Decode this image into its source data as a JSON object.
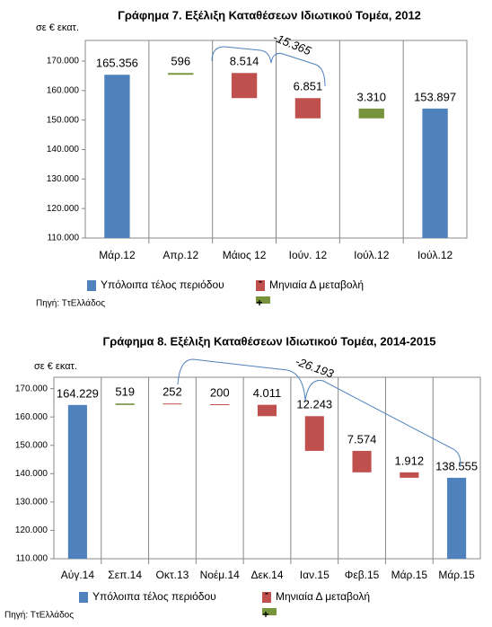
{
  "chart_data": [
    {
      "type": "waterfall",
      "title": "Γράφημα 7. Εξέλιξη Καταθέσεων Ιδιωτικού Τομέα, 2012",
      "y_label": "σε € εκατ.",
      "categories": [
        "Μάρ.12",
        "Απρ.12",
        "Μάιος 12",
        "Ιούν. 12",
        "Ιούλ.12",
        "Ιούλ.12"
      ],
      "values": [
        165356,
        596,
        8514,
        6851,
        3310,
        153897
      ],
      "value_labels": [
        "165.356",
        "596",
        "8.514",
        "6.851",
        "3.310",
        "153.897"
      ],
      "measures": [
        "total",
        "increase",
        "decrease",
        "decrease",
        "increase",
        "total"
      ],
      "colors": {
        "total": "#4f81bd",
        "increase": "#77933c",
        "decrease": "#c0504d"
      },
      "ylim": [
        110000,
        177000
      ],
      "yticks": [
        {
          "value": 110000,
          "label": "110.000"
        },
        {
          "value": 120000,
          "label": "120.000"
        },
        {
          "value": 130000,
          "label": "130.000"
        },
        {
          "value": 140000,
          "label": "140.000"
        },
        {
          "value": 150000,
          "label": "150.000"
        },
        {
          "value": 160000,
          "label": "160.000"
        },
        {
          "value": 170000,
          "label": "170.000"
        }
      ],
      "annotation": "-15.365",
      "legend": [
        {
          "name": "Υπόλοιπα τέλος περιόδου",
          "color": "#4f81bd"
        },
        {
          "name": "Μηνιαία Δ μεταβολή",
          "color": "#c0504d",
          "symbol": "-"
        },
        {
          "color": "#77933c",
          "symbol": "+"
        }
      ],
      "source": "Πηγή: ΤτΕλλάδος"
    },
    {
      "type": "waterfall",
      "title": "Γράφημα 8. Εξέλιξη Καταθέσεων Ιδιωτικού Τομέα, 2014-2015",
      "y_label": "σε € εκατ.",
      "categories": [
        "Αύγ.14",
        "Σεπ.14",
        "Οκτ.13",
        "Νοέμ.14",
        "Δεκ.14",
        "Ιαν.15",
        "Φεβ.15",
        "Μάρ.15",
        "Μάρ.15"
      ],
      "values": [
        164229,
        519,
        252,
        200,
        4011,
        12243,
        7574,
        1912,
        138555
      ],
      "value_labels": [
        "164.229",
        "519",
        "252",
        "200",
        "4.011",
        "12.243",
        "7.574",
        "1.912",
        "138.555"
      ],
      "measures": [
        "total",
        "increase",
        "decrease",
        "decrease",
        "decrease",
        "decrease",
        "decrease",
        "decrease",
        "total"
      ],
      "colors": {
        "total": "#4f81bd",
        "increase": "#77933c",
        "decrease": "#c0504d"
      },
      "ylim": [
        110000,
        174000
      ],
      "yticks": [
        {
          "value": 110000,
          "label": "110.000"
        },
        {
          "value": 120000,
          "label": "120.000"
        },
        {
          "value": 130000,
          "label": "130.000"
        },
        {
          "value": 140000,
          "label": "140.000"
        },
        {
          "value": 150000,
          "label": "150.000"
        },
        {
          "value": 160000,
          "label": "160.000"
        },
        {
          "value": 170000,
          "label": "170.000"
        }
      ],
      "annotation": "-26.193",
      "legend": [
        {
          "name": "Υπόλοιπα τέλος περιόδου",
          "color": "#4f81bd"
        },
        {
          "name": "Μηνιαία Δ μεταβολή",
          "color": "#c0504d",
          "symbol": "-"
        },
        {
          "color": "#77933c",
          "symbol": "+"
        }
      ],
      "source": "Πηγή: ΤτΕλλάδος"
    }
  ]
}
